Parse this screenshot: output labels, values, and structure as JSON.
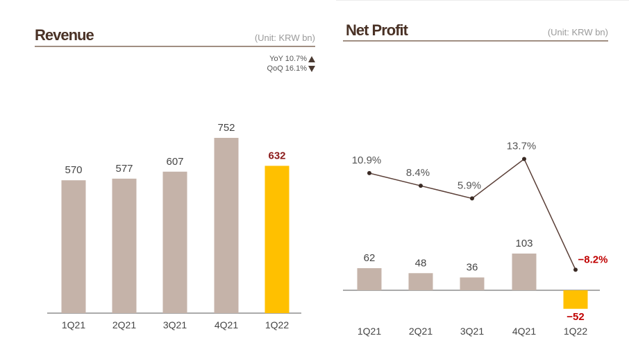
{
  "revenue": {
    "title": "Revenue",
    "unit": "(Unit: KRW bn)",
    "yoy_label": "YoY 10.7%",
    "qoq_label": "QoQ 16.1%",
    "colors": {
      "bar": "#c5b3a9",
      "highlight": "#ffc000",
      "highlight_label": "#8b1a1a"
    }
  },
  "net_profit": {
    "title": "Net Profit",
    "unit": "(Unit: KRW bn)",
    "colors": {
      "bar": "#c5b3a9",
      "highlight": "#ffc000",
      "highlight_label": "#c00000",
      "line": "#5a3e36"
    }
  },
  "chart_data": [
    {
      "type": "bar",
      "title": "Revenue",
      "categories": [
        "1Q21",
        "2Q21",
        "3Q21",
        "4Q21",
        "1Q22"
      ],
      "values": [
        570,
        577,
        607,
        752,
        632
      ],
      "value_labels": [
        "570",
        "577",
        "607",
        "752",
        "632"
      ],
      "highlight_index": 4,
      "ylim": [
        0,
        752
      ],
      "grid": false
    },
    {
      "type": "bar",
      "title": "Net Profit",
      "categories": [
        "1Q21",
        "2Q21",
        "3Q21",
        "4Q21",
        "1Q22"
      ],
      "series": [
        {
          "type": "bar",
          "values": [
            62,
            48,
            36,
            103,
            -52
          ],
          "labels": [
            "62",
            "48",
            "36",
            "103",
            "−52"
          ]
        },
        {
          "type": "line",
          "values": [
            10.9,
            8.4,
            5.9,
            13.7,
            -8.2
          ],
          "labels": [
            "10.9%",
            "8.4%",
            "5.9%",
            "13.7%",
            "−8.2%"
          ]
        }
      ],
      "highlight_index": 4,
      "grid": false
    }
  ]
}
